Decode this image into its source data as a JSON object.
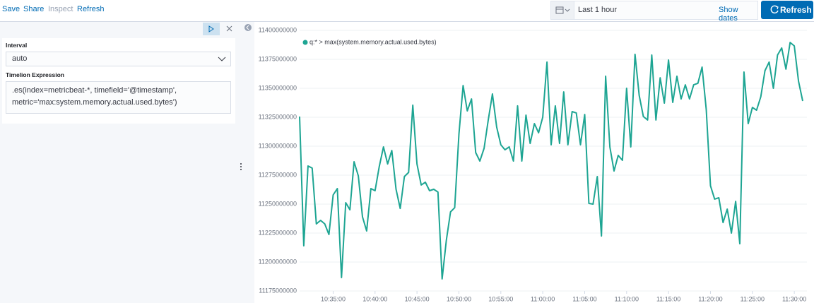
{
  "nav": [
    "Save",
    "Share",
    "Inspect",
    "Refresh"
  ],
  "date_picker": {
    "range": "Last 1 hour",
    "show_dates": "Show dates"
  },
  "refresh_button": "Refresh",
  "editor": {
    "interval_label": "Interval",
    "interval_value": "auto",
    "expression_label": "Timelion Expression",
    "expression": ".es(index=metricbeat-*, timefield='@timestamp', metric='max:system.memory.actual.used.bytes')"
  },
  "chart_data": {
    "type": "line",
    "x": [
      "10:31:00",
      "10:31:30",
      "10:32:00",
      "10:32:30",
      "10:33:00",
      "10:33:30",
      "10:34:00",
      "10:34:30",
      "10:35:00",
      "10:35:30",
      "10:36:00",
      "10:36:30",
      "10:37:00",
      "10:37:30",
      "10:38:00",
      "10:38:30",
      "10:39:00",
      "10:39:30",
      "10:40:00",
      "10:40:30",
      "10:41:00",
      "10:41:30",
      "10:42:00",
      "10:42:30",
      "10:43:00",
      "10:43:30",
      "10:44:00",
      "10:44:30",
      "10:45:00",
      "10:45:30",
      "10:46:00",
      "10:46:30",
      "10:47:00",
      "10:47:30",
      "10:48:00",
      "10:48:30",
      "10:49:00",
      "10:49:30",
      "10:50:00",
      "10:50:30",
      "10:51:00",
      "10:51:30",
      "10:52:00",
      "10:52:30",
      "10:53:00",
      "10:53:30",
      "10:54:00",
      "10:54:30",
      "10:55:00",
      "10:55:30",
      "10:56:00",
      "10:56:30",
      "10:57:00",
      "10:57:30",
      "10:58:00",
      "10:58:30",
      "10:59:00",
      "10:59:30",
      "11:00:00",
      "11:00:30",
      "11:01:00",
      "11:01:30",
      "11:02:00",
      "11:02:30",
      "11:03:00",
      "11:03:30",
      "11:04:00",
      "11:04:30",
      "11:05:00",
      "11:05:30",
      "11:06:00",
      "11:06:30",
      "11:07:00",
      "11:07:30",
      "11:08:00",
      "11:08:30",
      "11:09:00",
      "11:09:30",
      "11:10:00",
      "11:10:30",
      "11:11:00",
      "11:11:30",
      "11:12:00",
      "11:12:30",
      "11:13:00",
      "11:13:30",
      "11:14:00",
      "11:14:30",
      "11:15:00",
      "11:15:30",
      "11:16:00",
      "11:16:30",
      "11:17:00",
      "11:17:30",
      "11:18:00",
      "11:18:30",
      "11:19:00",
      "11:19:30",
      "11:20:00",
      "11:20:30",
      "11:21:00",
      "11:21:30",
      "11:22:00",
      "11:22:30",
      "11:23:00",
      "11:23:30",
      "11:24:00",
      "11:24:30",
      "11:25:00",
      "11:25:30",
      "11:26:00",
      "11:26:30",
      "11:27:00",
      "11:27:30",
      "11:28:00",
      "11:28:30",
      "11:29:00",
      "11:29:30",
      "11:30:00",
      "11:30:30",
      "11:31:00"
    ],
    "series": [
      {
        "name": "q:* > max(system.memory.actual.used.bytes)",
        "color": "#1ea593",
        "values": [
          11325600000,
          11214000000,
          11282900000,
          11281100000,
          11232900000,
          11236000000,
          11232900000,
          11223800000,
          11257900000,
          11263400000,
          11186600000,
          11251200000,
          11245100000,
          11286600000,
          11274400000,
          11239000000,
          11226800000,
          11263400000,
          11261600000,
          11282300000,
          11299400000,
          11284700000,
          11296300000,
          11262800000,
          11246300000,
          11273800000,
          11277400000,
          11335400000,
          11284700000,
          11266500000,
          11268900000,
          11261600000,
          11262800000,
          11260400000,
          11185400000,
          11218900000,
          11243300000,
          11246900000,
          11310400000,
          11352400000,
          11330500000,
          11340800000,
          11294500000,
          11287200000,
          11298200000,
          11322600000,
          11345100000,
          11316500000,
          11301200000,
          11296900000,
          11299400000,
          11287200000,
          11334800000,
          11287200000,
          11326800000,
          11302400000,
          11319500000,
          11311600000,
          11325000000,
          11372600000,
          11301200000,
          11334800000,
          11302400000,
          11346900000,
          11301200000,
          11329900000,
          11328700000,
          11301200000,
          11327400000,
          11250600000,
          11250000000,
          11273800000,
          11222500000,
          11360400000,
          11299400000,
          11278600000,
          11292100000,
          11287800000,
          11350000000,
          11299400000,
          11379300000,
          11343900000,
          11325600000,
          11322600000,
          11378700000,
          11322600000,
          11359100000,
          11337200000,
          11374400000,
          11337800000,
          11360400000,
          11340800000,
          11353000000,
          11340800000,
          11353000000,
          11354300000,
          11368300000,
          11331700000,
          11265800000,
          11254300000,
          11255500000,
          11234100000,
          11245700000,
          11225000000,
          11252400000,
          11215800000,
          11364000000,
          11319500000,
          11333500000,
          11331100000,
          11342700000,
          11365200000,
          11372600000,
          11350000000,
          11378700000,
          11384800000,
          11366500000,
          11389600000,
          11386600000,
          11356100000,
          11339000000
        ]
      }
    ],
    "xlim": [
      "10:31:00",
      "11:31:00"
    ],
    "xticks": [
      "10:35:00",
      "10:40:00",
      "10:45:00",
      "10:50:00",
      "10:55:00",
      "11:00:00",
      "11:05:00",
      "11:10:00",
      "11:15:00",
      "11:20:00",
      "11:25:00",
      "11:30:00"
    ],
    "ylim": [
      11175000000,
      11400000000
    ],
    "yticks": [
      11175000000,
      11200000000,
      11225000000,
      11250000000,
      11275000000,
      11300000000,
      11325000000,
      11350000000,
      11375000000,
      11400000000
    ],
    "grid": true,
    "legend": "top-left"
  }
}
